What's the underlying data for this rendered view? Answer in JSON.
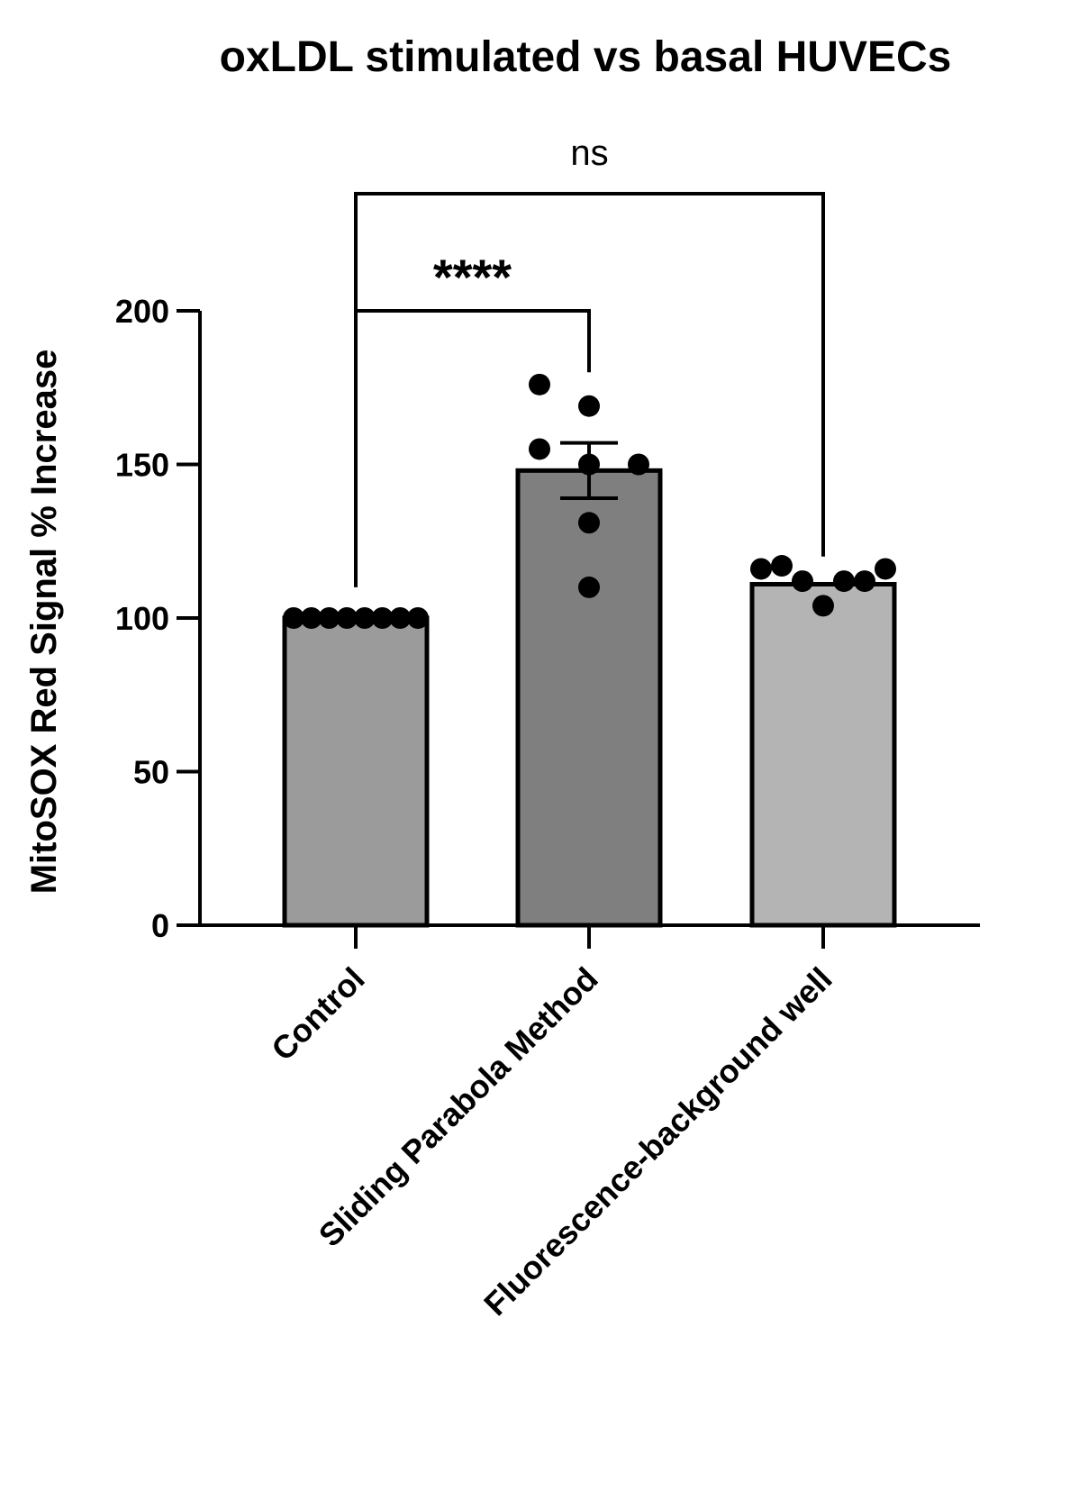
{
  "chart_data": {
    "type": "bar",
    "title": "oxLDL stimulated vs basal HUVECs",
    "xlabel": "",
    "ylabel": "MitoSOX Red  Signal % Increase",
    "ylim": [
      0,
      200
    ],
    "yticks": [
      0,
      50,
      100,
      150,
      200
    ],
    "categories": [
      "Control",
      "Sliding Parabola Method",
      "Fluorescence-background well"
    ],
    "values": [
      100,
      148,
      111
    ],
    "errors": [
      0,
      9,
      0
    ],
    "bar_colors": [
      "#9b9b9b",
      "#7f7f7f",
      "#b4b4b4"
    ],
    "points": [
      [
        100,
        100,
        100,
        100,
        100,
        100,
        100,
        100
      ],
      [
        176,
        169,
        155,
        150,
        150,
        131,
        110
      ],
      [
        116,
        117,
        112,
        104,
        112,
        112,
        116
      ]
    ],
    "comparisons": [
      {
        "from": "Control",
        "to": "Sliding Parabola Method",
        "label": "****"
      },
      {
        "from": "Control",
        "to": "Fluorescence-background well",
        "label": "ns"
      }
    ],
    "grid": false,
    "legend": "none"
  }
}
